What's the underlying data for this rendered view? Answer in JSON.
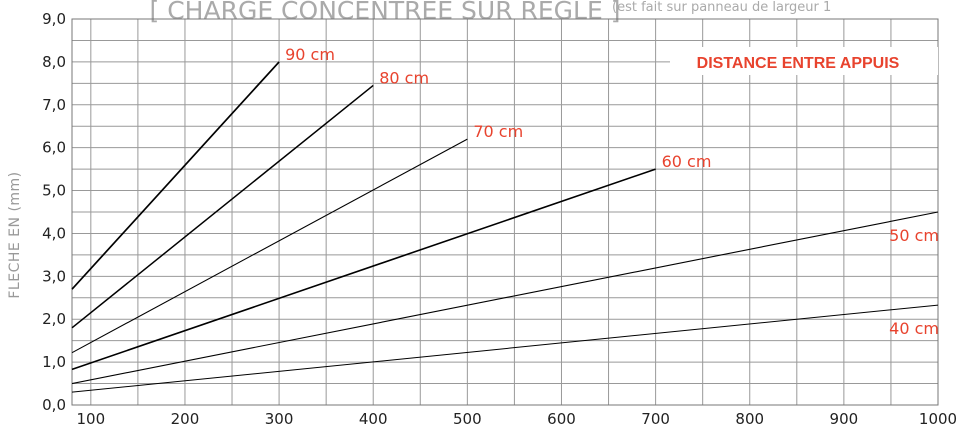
{
  "title": {
    "main": "[ CHARGE CONCENTREE SUR REGLE ]",
    "sub": "(est fait sur panneau de largeur 1"
  },
  "chart_data": {
    "type": "line",
    "ylabel": "FLECHE EN (mm)",
    "xlabel": "",
    "xlim": [
      80,
      1000
    ],
    "ylim": [
      0,
      9
    ],
    "x_ticks": [
      100,
      200,
      300,
      400,
      500,
      600,
      700,
      800,
      900,
      1000
    ],
    "y_ticks": [
      "0,0",
      "1,0",
      "2,0",
      "3,0",
      "4,0",
      "5,0",
      "6,0",
      "7,0",
      "8,0",
      "9,0"
    ],
    "grid": true,
    "legend_title": "DISTANCE ENTRE APPUIS",
    "series": [
      {
        "name": "90 cm",
        "x": [
          80,
          300
        ],
        "y": [
          2.7,
          8.0
        ]
      },
      {
        "name": "80 cm",
        "x": [
          80,
          400
        ],
        "y": [
          1.8,
          7.45
        ]
      },
      {
        "name": "70 cm",
        "x": [
          80,
          500
        ],
        "y": [
          1.22,
          6.2
        ]
      },
      {
        "name": "60 cm",
        "x": [
          80,
          700
        ],
        "y": [
          0.83,
          5.5
        ]
      },
      {
        "name": "50 cm",
        "x": [
          80,
          1000
        ],
        "y": [
          0.5,
          4.5
        ]
      },
      {
        "name": "40 cm",
        "x": [
          80,
          1000
        ],
        "y": [
          0.3,
          2.33
        ]
      }
    ]
  }
}
